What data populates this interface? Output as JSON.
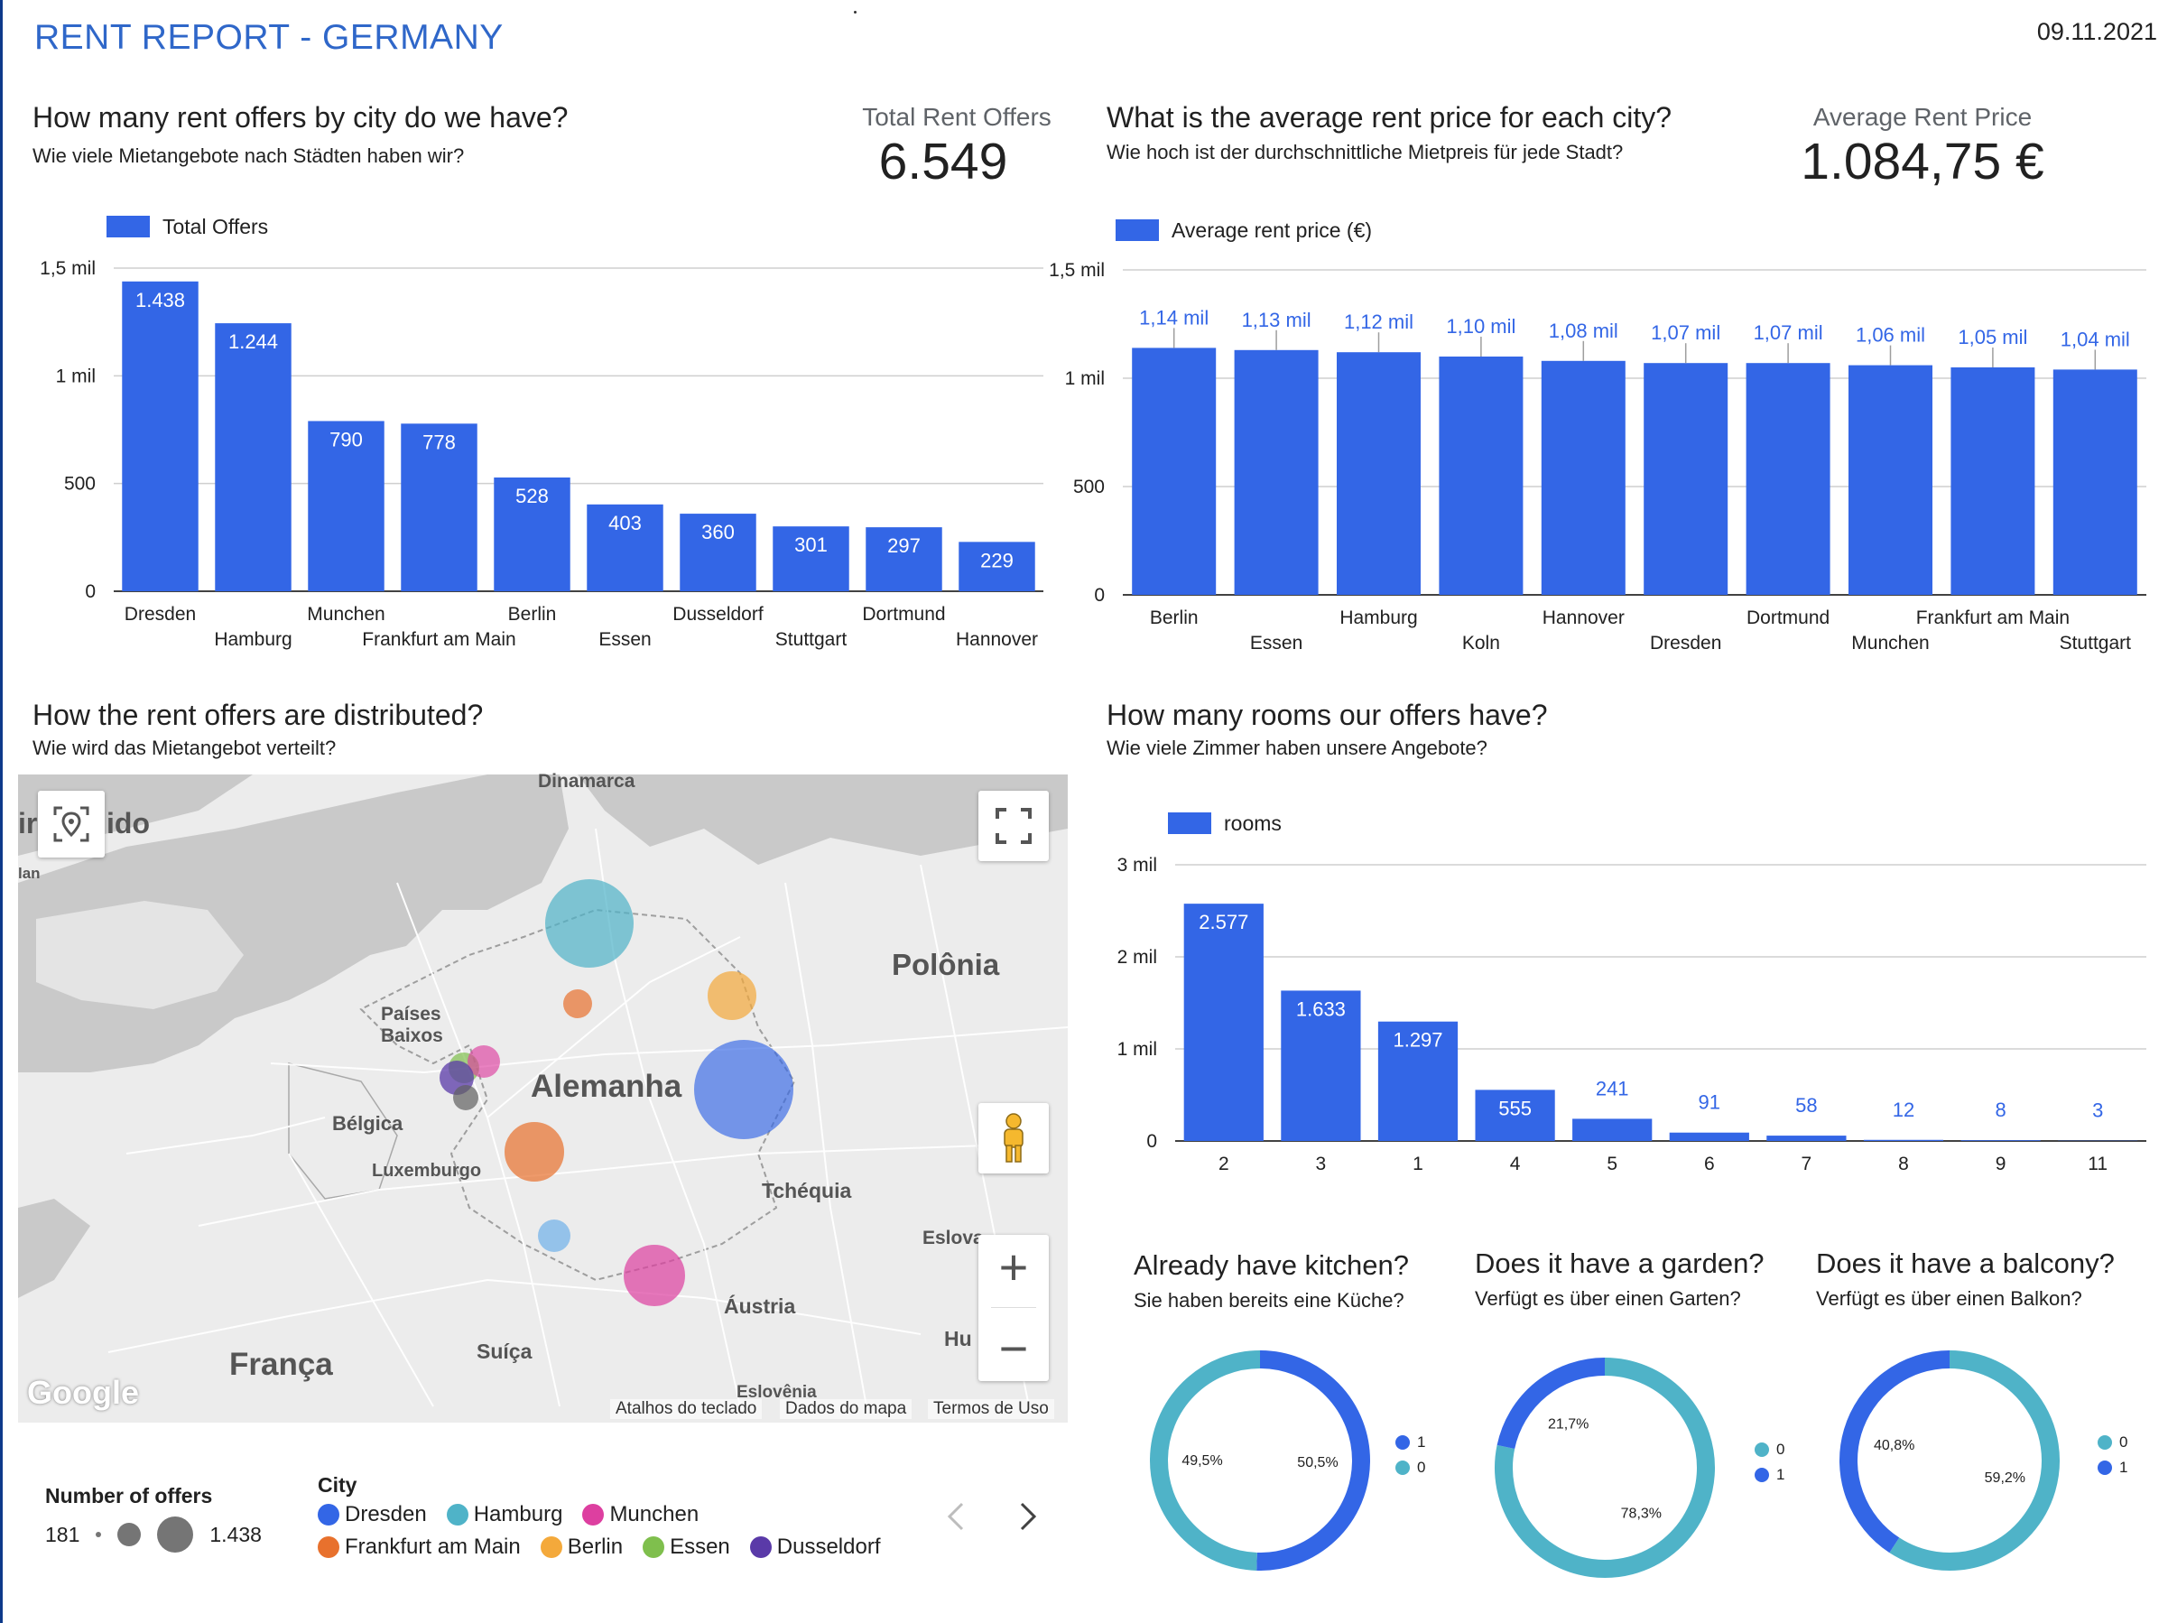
{
  "header": {
    "title": "RENT REPORT - GERMANY",
    "date": "09.11.2021"
  },
  "offers": {
    "title": "How many rent offers by city do we have?",
    "subtitle": "Wie viele Mietangebote nach Städten haben wir?",
    "kpi_label": "Total Rent Offers",
    "kpi_value": "6.549"
  },
  "price": {
    "title": "What is the average rent price for each city?",
    "subtitle": "Wie hoch ist der durchschnittliche Mietpreis für jede Stadt?",
    "kpi_label": "Average Rent Price",
    "kpi_value": "1.084,75 €"
  },
  "distribution": {
    "title": "How the rent offers are distributed?",
    "subtitle": "Wie wird das Mietangebot verteilt?"
  },
  "rooms": {
    "title": "How many rooms our offers have?",
    "subtitle": "Wie viele Zimmer haben unsere Angebote?"
  },
  "map": {
    "labels": {
      "dinamarca": "Dinamarca",
      "unido": "ido",
      "ir": "ir",
      "lan": "lan",
      "polonia": "Polônia",
      "paises": "Países",
      "baixos": "Baixos",
      "alemanha": "Alemanha",
      "belgica": "Bélgica",
      "luxemburgo": "Luxemburgo",
      "tchequia": "Tchéquia",
      "eslova": "Eslova",
      "austria": "Áustria",
      "hu": "Hu",
      "suica": "Suíça",
      "franca": "França",
      "eslovenia": "Eslovênia"
    },
    "logo": "Google",
    "footer": [
      "Atalhos do teclado",
      "Dados do mapa",
      "Termos de Uso"
    ],
    "buttons": {
      "zoom_in": "+",
      "zoom_out": "−"
    },
    "size_legend": {
      "title": "Number of offers",
      "min": "181",
      "max": "1.438"
    },
    "city_legend": {
      "title": "City",
      "rows": [
        [
          {
            "name": "Dresden",
            "color": "#3366e6"
          },
          {
            "name": "Hamburg",
            "color": "#4fb3c8"
          },
          {
            "name": "Munchen",
            "color": "#dd3fa0"
          }
        ],
        [
          {
            "name": "Frankfurt am Main",
            "color": "#e8712d"
          },
          {
            "name": "Berlin",
            "color": "#f4a93b"
          },
          {
            "name": "Essen",
            "color": "#7fbf4d"
          },
          {
            "name": "Dusseldorf",
            "color": "#5a3aa8"
          }
        ]
      ]
    },
    "bubbles": [
      {
        "city": "Hamburg",
        "offers": 1244,
        "color": "#4fb3c8"
      },
      {
        "city": "Dresden",
        "offers": 1438,
        "color": "#3366e6"
      },
      {
        "city": "Berlin",
        "offers": 528,
        "color": "#f4a93b"
      },
      {
        "city": "Frankfurt am Main",
        "offers": 778,
        "color": "#e8712d"
      },
      {
        "city": "Munchen",
        "offers": 790,
        "color": "#dd3fa0"
      }
    ]
  },
  "pies": [
    {
      "title": "Already have kitchen?",
      "subtitle": "Sie haben bereits eine Küche?",
      "legend": [
        {
          "label": "1",
          "color": "#3366e6"
        },
        {
          "label": "0",
          "color": "#4fb3c8"
        }
      ]
    },
    {
      "title": "Does it have a garden?",
      "subtitle": "Verfügt es über einen Garten?",
      "legend": [
        {
          "label": "0",
          "color": "#4fb3c8"
        },
        {
          "label": "1",
          "color": "#3366e6"
        }
      ]
    },
    {
      "title": "Does it have a balcony?",
      "subtitle": "Verfügt es über einen Balkon?",
      "legend": [
        {
          "label": "0",
          "color": "#4fb3c8"
        },
        {
          "label": "1",
          "color": "#3366e6"
        }
      ]
    }
  ],
  "chart_data": [
    {
      "type": "bar",
      "legend": "Total Offers",
      "categories": [
        "Dresden",
        "Hamburg",
        "Munchen",
        "Frankfurt am Main",
        "Berlin",
        "Essen",
        "Dusseldorf",
        "Stuttgart",
        "Dortmund",
        "Hannover"
      ],
      "values": [
        1438,
        1244,
        790,
        778,
        528,
        403,
        360,
        301,
        297,
        229
      ],
      "value_labels": [
        "1.438",
        "1.244",
        "790",
        "778",
        "528",
        "403",
        "360",
        "301",
        "297",
        "229"
      ],
      "yticks": [
        0,
        500,
        1000,
        1500
      ],
      "ytick_labels": [
        "0",
        "500",
        "1 mil",
        "1,5 mil"
      ],
      "ylim": [
        0,
        1500
      ],
      "color": "#3366e6",
      "grid": true,
      "legend_position": "top-left"
    },
    {
      "type": "bar",
      "legend": "Average rent price (€)",
      "categories": [
        "Berlin",
        "Essen",
        "Hamburg",
        "Koln",
        "Hannover",
        "Dresden",
        "Dortmund",
        "Munchen",
        "Frankfurt am Main",
        "Stuttgart"
      ],
      "values": [
        1140,
        1130,
        1120,
        1100,
        1080,
        1070,
        1070,
        1060,
        1050,
        1040
      ],
      "value_labels": [
        "1,14 mil",
        "1,13 mil",
        "1,12 mil",
        "1,10 mil",
        "1,08 mil",
        "1,07 mil",
        "1,07 mil",
        "1,06 mil",
        "1,05 mil",
        "1,04 mil"
      ],
      "yticks": [
        0,
        500,
        1000,
        1500
      ],
      "ytick_labels": [
        "0",
        "500",
        "1 mil",
        "1,5 mil"
      ],
      "ylim": [
        0,
        1500
      ],
      "color": "#3366e6",
      "grid": true,
      "legend_position": "top-left"
    },
    {
      "type": "bar",
      "legend": "rooms",
      "categories": [
        "2",
        "3",
        "1",
        "4",
        "5",
        "6",
        "7",
        "8",
        "9",
        "11"
      ],
      "values": [
        2577,
        1633,
        1297,
        555,
        241,
        91,
        58,
        12,
        8,
        3
      ],
      "value_labels": [
        "2.577",
        "1.633",
        "1.297",
        "555",
        "241",
        "91",
        "58",
        "12",
        "8",
        "3"
      ],
      "yticks": [
        0,
        1000,
        2000,
        3000
      ],
      "ytick_labels": [
        "0",
        "1 mil",
        "2 mil",
        "3 mil"
      ],
      "ylim": [
        0,
        3000
      ],
      "color": "#3366e6",
      "grid": true,
      "legend_position": "top-left"
    },
    {
      "type": "pie",
      "title": "Already have kitchen?",
      "slices": [
        {
          "label": "1",
          "value": 50.5,
          "text": "50,5%",
          "color": "#3366e6"
        },
        {
          "label": "0",
          "value": 49.5,
          "text": "49,5%",
          "color": "#4fb3c8"
        }
      ]
    },
    {
      "type": "pie",
      "title": "Does it have a garden?",
      "slices": [
        {
          "label": "0",
          "value": 78.3,
          "text": "78,3%",
          "color": "#4fb3c8"
        },
        {
          "label": "1",
          "value": 21.7,
          "text": "21,7%",
          "color": "#3366e6"
        }
      ]
    },
    {
      "type": "pie",
      "title": "Does it have a balcony?",
      "slices": [
        {
          "label": "0",
          "value": 59.2,
          "text": "59,2%",
          "color": "#4fb3c8"
        },
        {
          "label": "1",
          "value": 40.8,
          "text": "40,8%",
          "color": "#3366e6"
        }
      ]
    }
  ]
}
